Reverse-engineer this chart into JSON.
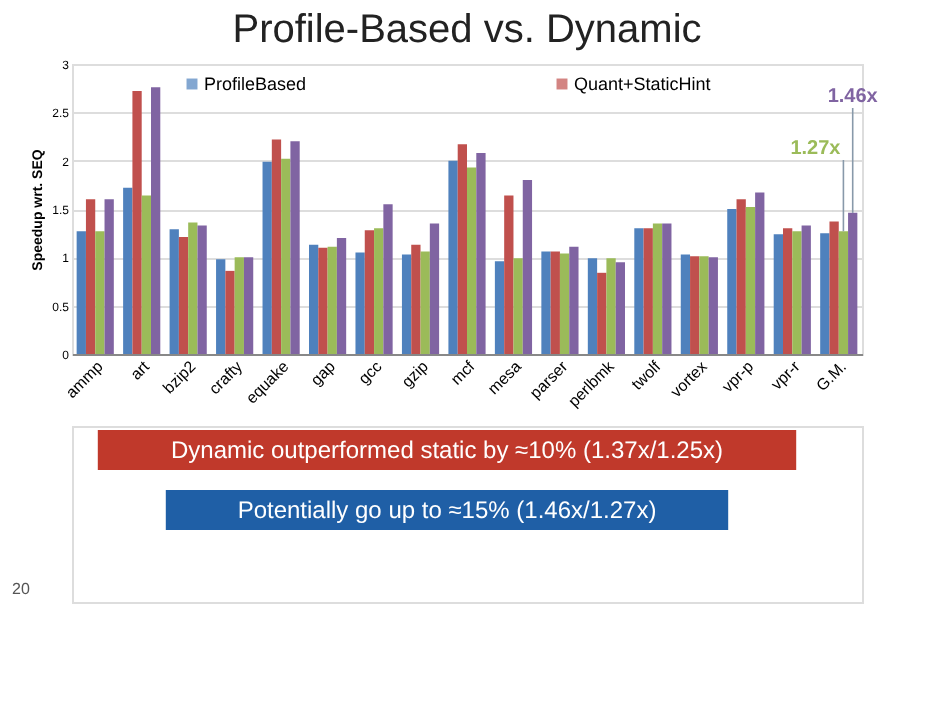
{
  "chart_data": {
    "type": "bar",
    "title": "Profile-Based vs. Dynamic",
    "ylabel": "Speedup wrt. SEQ",
    "categories": [
      "ammp",
      "art",
      "bzip2",
      "crafty",
      "equake",
      "gap",
      "gcc",
      "gzip",
      "mcf",
      "mesa",
      "parser",
      "perlbmk",
      "twolf",
      "vortex",
      "vpr-p",
      "vpr-r",
      "G.M."
    ],
    "series": [
      {
        "name": "ProfileBased",
        "color": "#4f81bd",
        "values": [
          1.27,
          1.72,
          1.29,
          0.98,
          1.99,
          1.13,
          1.05,
          1.03,
          2.0,
          0.96,
          1.06,
          0.99,
          1.3,
          1.03,
          1.5,
          1.24,
          1.25
        ]
      },
      {
        "name": "Quant+StaticHint",
        "color": "#c0504d",
        "values": [
          1.6,
          2.72,
          1.21,
          0.86,
          2.22,
          1.1,
          1.28,
          1.13,
          2.17,
          1.64,
          1.06,
          0.84,
          1.3,
          1.01,
          1.6,
          1.3,
          1.37
        ]
      },
      {
        "color": "#9bbb59",
        "values": [
          1.27,
          1.64,
          1.36,
          1.0,
          2.02,
          1.11,
          1.3,
          1.06,
          1.93,
          0.99,
          1.04,
          0.99,
          1.35,
          1.01,
          1.52,
          1.27,
          1.27
        ]
      },
      {
        "color": "#8064a2",
        "values": [
          1.6,
          2.76,
          1.33,
          1.0,
          2.2,
          1.2,
          1.55,
          1.35,
          2.08,
          1.8,
          1.11,
          0.95,
          1.35,
          1.0,
          1.67,
          1.33,
          1.46
        ]
      }
    ],
    "ylim": [
      0,
      3
    ],
    "yticks": [
      0,
      0.5,
      1,
      1.5,
      2,
      2.5,
      3
    ],
    "grid": "y",
    "legend": "top",
    "annotations": [
      {
        "text": "1.27x",
        "x": "G.M.",
        "y": 1.27
      },
      {
        "text": "1.46x",
        "x": "G.M.",
        "y": 1.46
      },
      "Dynamic outperformed static by ≈10% (1.37x/1.25x)",
      "Potentially go up to ≈15% (1.46x/1.27x)",
      "20"
    ]
  }
}
